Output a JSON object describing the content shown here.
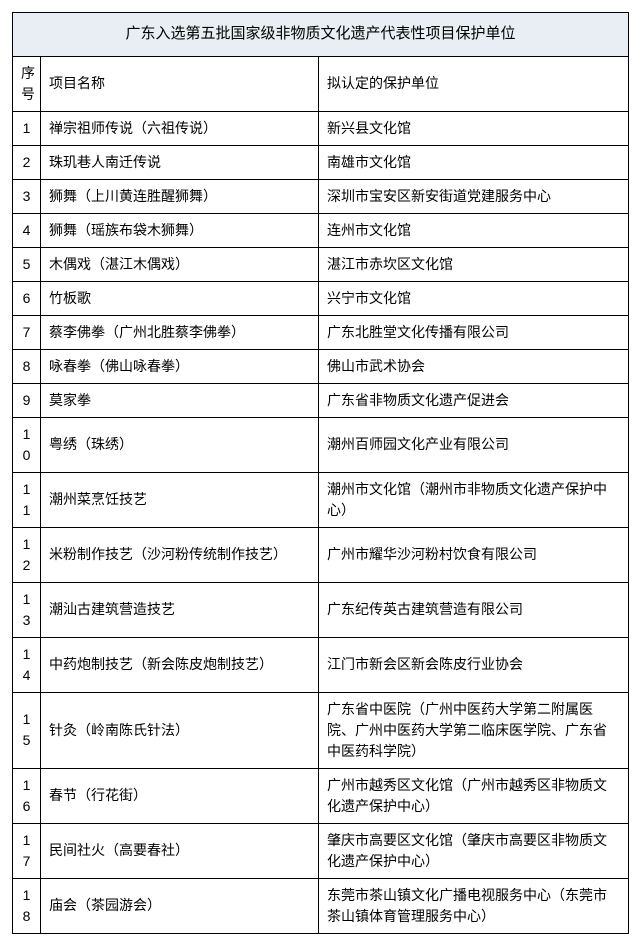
{
  "table": {
    "title": "广东入选第五批国家级非物质文化遗产代表性项目保护单位",
    "columns": {
      "num": "序号",
      "name": "项目名称",
      "unit": "拟认定的保护单位"
    },
    "col_widths": {
      "num": 28,
      "name": 278,
      "unit": 310
    },
    "title_bg": "#e8eef4",
    "border_color": "#000000",
    "font_size": 14,
    "title_font_size": 15,
    "rows": [
      {
        "num": "1",
        "name": "禅宗祖师传说（六祖传说）",
        "unit": "新兴县文化馆"
      },
      {
        "num": "2",
        "name": "珠玑巷人南迁传说",
        "unit": "南雄市文化馆"
      },
      {
        "num": "3",
        "name": "狮舞（上川黄连胜醒狮舞）",
        "unit": "深圳市宝安区新安街道党建服务中心"
      },
      {
        "num": "4",
        "name": "狮舞（瑶族布袋木狮舞）",
        "unit": "连州市文化馆"
      },
      {
        "num": "5",
        "name": "木偶戏（湛江木偶戏）",
        "unit": "湛江市赤坎区文化馆"
      },
      {
        "num": "6",
        "name": "竹板歌",
        "unit": "兴宁市文化馆"
      },
      {
        "num": "7",
        "name": "蔡李佛拳（广州北胜蔡李佛拳）",
        "unit": "广东北胜堂文化传播有限公司"
      },
      {
        "num": "8",
        "name": "咏春拳（佛山咏春拳）",
        "unit": "佛山市武术协会"
      },
      {
        "num": "9",
        "name": "莫家拳",
        "unit": "广东省非物质文化遗产促进会"
      },
      {
        "num": "10",
        "name": "粤绣（珠绣）",
        "unit": "潮州百师园文化产业有限公司"
      },
      {
        "num": "11",
        "name": "潮州菜烹饪技艺",
        "unit": "潮州市文化馆（潮州市非物质文化遗产保护中心）"
      },
      {
        "num": "12",
        "name": "米粉制作技艺（沙河粉传统制作技艺）",
        "unit": "广州市耀华沙河粉村饮食有限公司"
      },
      {
        "num": "13",
        "name": "潮汕古建筑营造技艺",
        "unit": "广东纪传英古建筑营造有限公司"
      },
      {
        "num": "14",
        "name": "中药炮制技艺（新会陈皮炮制技艺）",
        "unit": "江门市新会区新会陈皮行业协会"
      },
      {
        "num": "15",
        "name": "针灸（岭南陈氏针法）",
        "unit": "广东省中医院（广州中医药大学第二附属医院、广州中医药大学第二临床医学院、广东省中医药科学院）"
      },
      {
        "num": "16",
        "name": "春节（行花街）",
        "unit": "广州市越秀区文化馆（广州市越秀区非物质文化遗产保护中心）"
      },
      {
        "num": "17",
        "name": "民间社火（高要春社）",
        "unit": "肇庆市高要区文化馆（肇庆市高要区非物质文化遗产保护中心）"
      },
      {
        "num": "18",
        "name": "庙会（茶园游会）",
        "unit": "东莞市茶山镇文化广播电视服务中心（东莞市茶山镇体育管理服务中心）"
      }
    ]
  }
}
